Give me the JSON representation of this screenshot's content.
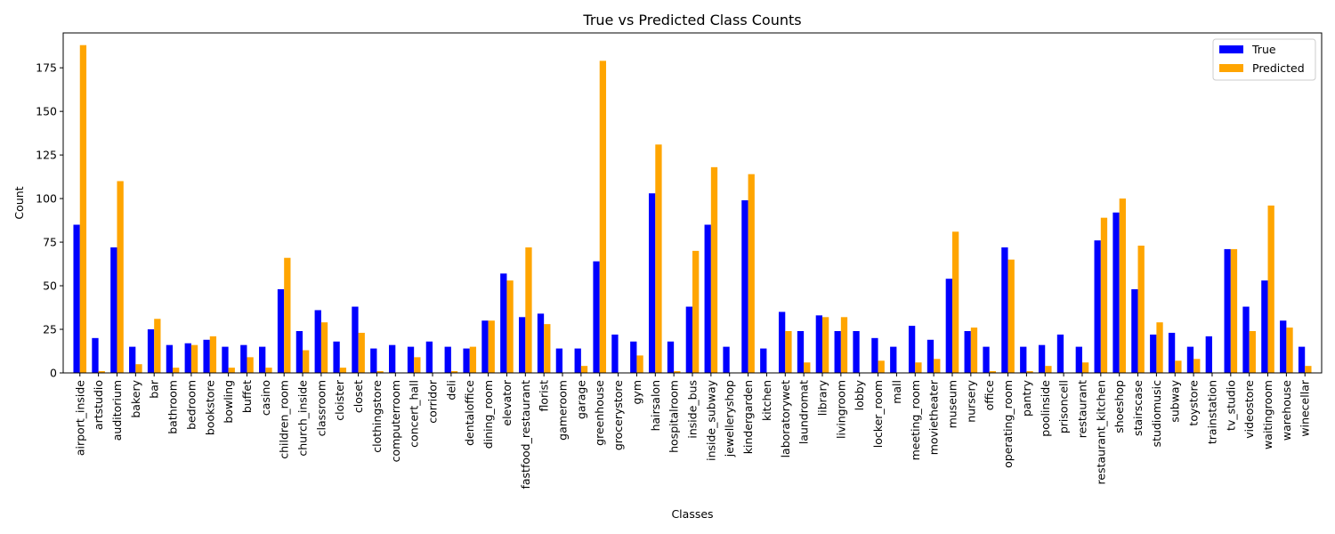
{
  "chart_data": {
    "type": "bar",
    "title": "True vs Predicted Class Counts",
    "xlabel": "Classes",
    "ylabel": "Count",
    "ylim": [
      0,
      195
    ],
    "yticks": [
      0,
      25,
      50,
      75,
      100,
      125,
      150,
      175
    ],
    "grid": false,
    "legend_position": "top-right",
    "categories": [
      "airport_inside",
      "artstudio",
      "auditorium",
      "bakery",
      "bar",
      "bathroom",
      "bedroom",
      "bookstore",
      "bowling",
      "buffet",
      "casino",
      "children_room",
      "church_inside",
      "classroom",
      "cloister",
      "closet",
      "clothingstore",
      "computerroom",
      "concert_hall",
      "corridor",
      "deli",
      "dentaloffice",
      "dining_room",
      "elevator",
      "fastfood_restaurant",
      "florist",
      "gameroom",
      "garage",
      "greenhouse",
      "grocerystore",
      "gym",
      "hairsalon",
      "hospitalroom",
      "inside_bus",
      "inside_subway",
      "jewelleryshop",
      "kindergarden",
      "kitchen",
      "laboratorywet",
      "laundromat",
      "library",
      "livingroom",
      "lobby",
      "locker_room",
      "mall",
      "meeting_room",
      "movietheater",
      "museum",
      "nursery",
      "office",
      "operating_room",
      "pantry",
      "poolinside",
      "prisoncell",
      "restaurant",
      "restaurant_kitchen",
      "shoeshop",
      "stairscase",
      "studiomusic",
      "subway",
      "toystore",
      "trainstation",
      "tv_studio",
      "videostore",
      "waitingroom",
      "warehouse",
      "winecellar"
    ],
    "series": [
      {
        "name": "True",
        "color": "#0000ff",
        "values": [
          85,
          20,
          72,
          15,
          25,
          16,
          17,
          19,
          15,
          16,
          15,
          48,
          24,
          36,
          18,
          38,
          14,
          16,
          15,
          18,
          15,
          14,
          30,
          57,
          32,
          34,
          14,
          14,
          64,
          22,
          18,
          103,
          18,
          38,
          85,
          15,
          99,
          14,
          35,
          24,
          33,
          24,
          24,
          20,
          15,
          27,
          19,
          54,
          24,
          15,
          72,
          15,
          16,
          22,
          15,
          76,
          92,
          48,
          22,
          23,
          15,
          21,
          71,
          38,
          53,
          30,
          15
        ]
      },
      {
        "name": "Predicted",
        "color": "#ffa500",
        "values": [
          188,
          1,
          110,
          5,
          31,
          3,
          16,
          21,
          3,
          9,
          3,
          66,
          13,
          29,
          3,
          23,
          1,
          0,
          9,
          0,
          1,
          15,
          30,
          53,
          72,
          28,
          0,
          4,
          179,
          0,
          10,
          131,
          1,
          70,
          118,
          0,
          114,
          0,
          24,
          6,
          32,
          32,
          0,
          7,
          0,
          6,
          8,
          81,
          26,
          1,
          65,
          1,
          4,
          0,
          6,
          89,
          100,
          73,
          29,
          7,
          8,
          0,
          71,
          24,
          96,
          26,
          4
        ]
      }
    ]
  }
}
